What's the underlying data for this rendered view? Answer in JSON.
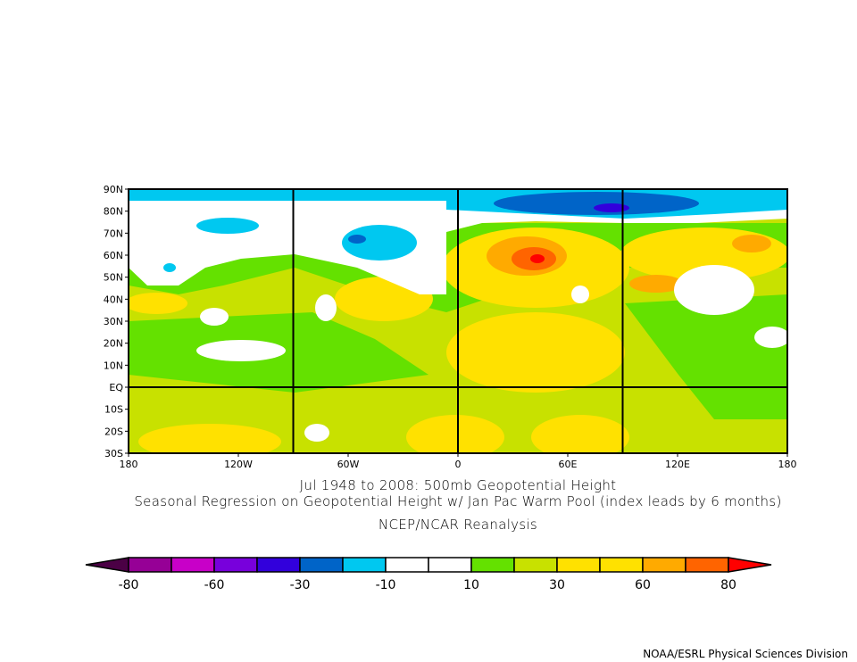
{
  "titles": {
    "line1": "Jul 1948 to 2008: 500mb Geopotential Height",
    "line2": "Seasonal Regression on Geopotential Height  w/ Jan Pac Warm Pool (index leads by 6 months)",
    "line3": "NCEP/NCAR Reanalysis"
  },
  "footer": "NOAA/ESRL Physical Sciences Division",
  "map": {
    "lat_labels": [
      "90N",
      "80N",
      "70N",
      "60N",
      "50N",
      "40N",
      "30N",
      "20N",
      "10N",
      "EQ",
      "10S",
      "20S",
      "30S"
    ],
    "lon_labels": [
      "180",
      "120W",
      "60W",
      "0",
      "60E",
      "120E",
      "180"
    ],
    "lat_range": [
      90,
      -30
    ],
    "lon_range": [
      -180,
      180
    ],
    "grid_lon": [
      -90,
      0,
      90
    ],
    "grid_lat": [
      0
    ]
  },
  "colorbar": {
    "colors": [
      "#4b0045",
      "#960096",
      "#c800c8",
      "#7800dc",
      "#3200dc",
      "#0064c8",
      "#00c8f0",
      "#ffffff",
      "#ffffff",
      "#64e100",
      "#c8e100",
      "#ffe100",
      "#ffe100",
      "#ffaa00",
      "#ff6400",
      "#ff0000"
    ],
    "labels": [
      "-80",
      "-60",
      "-30",
      "-10",
      "10",
      "30",
      "60",
      "80"
    ]
  }
}
